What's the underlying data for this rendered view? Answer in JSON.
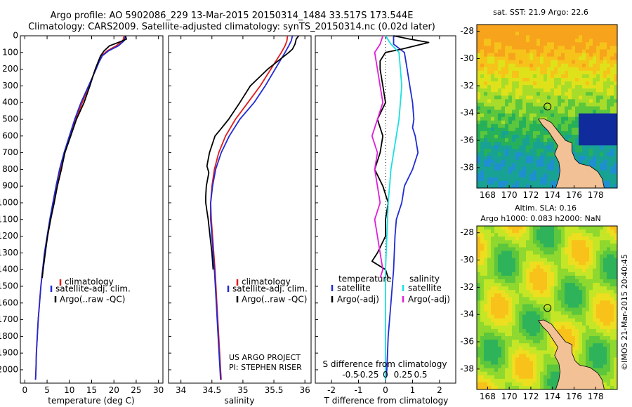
{
  "header": {
    "line1": "Argo profile: AO 5902086_229 13-Mar-2015 20150314_1484 33.517S 173.544E",
    "line2": "Climatology: CARS2009. Satellite-adjusted climatology: synTS_20150314.nc (0.02d later)"
  },
  "credit": {
    "project": "US ARGO PROJECT",
    "pi": "PI: STEPHEN RISER",
    "imos": "©IMOS 21-Mar-2015 20:40:45"
  },
  "colors": {
    "climatology": "#e21b1b",
    "satellite": "#1f2bd6",
    "argo": "#000000",
    "sal_satellite": "#18e0e0",
    "sal_argo": "#e020d8",
    "land": "#f2c195"
  },
  "chart_data": [
    {
      "id": "temperature",
      "type": "line",
      "xlabel": "temperature (deg C)",
      "ylabel": "",
      "xlim": [
        -1,
        31
      ],
      "ylim": [
        2080,
        0
      ],
      "xticks": [
        0,
        5,
        10,
        15,
        20,
        25,
        30
      ],
      "yticks": [
        0,
        100,
        200,
        300,
        400,
        500,
        600,
        700,
        800,
        900,
        1000,
        1100,
        1200,
        1300,
        1400,
        1500,
        1600,
        1700,
        1800,
        1900,
        2000
      ],
      "legend": [
        "climatology",
        "satellite-adj. clim.",
        "Argo(..raw -QC)"
      ],
      "series": [
        {
          "name": "climatology",
          "color_key": "climatology",
          "y": [
            0,
            30,
            60,
            90,
            120,
            160,
            200,
            300,
            400,
            500,
            600,
            700,
            800,
            900,
            1000,
            1100,
            1200,
            1300,
            1400,
            1500,
            1600,
            1700,
            1800,
            1900,
            2000,
            2060
          ],
          "x": [
            22.3,
            22.0,
            20.5,
            18.5,
            17.2,
            16.5,
            15.9,
            14.4,
            12.9,
            11.4,
            10.2,
            9.0,
            8.0,
            7.2,
            6.5,
            5.8,
            5.1,
            4.5,
            4.0,
            3.6,
            3.3,
            3.0,
            2.8,
            2.6,
            2.5,
            2.4
          ]
        },
        {
          "name": "satellite-adj. clim.",
          "color_key": "satellite",
          "y": [
            0,
            30,
            60,
            90,
            120,
            160,
            200,
            300,
            400,
            500,
            600,
            700,
            800,
            900,
            1000,
            1100,
            1200,
            1300,
            1400,
            1500,
            1600,
            1700,
            1800,
            1900,
            2000,
            2060
          ],
          "x": [
            22.6,
            22.3,
            21.0,
            18.8,
            17.4,
            16.6,
            16.0,
            14.3,
            12.6,
            11.2,
            10.0,
            8.8,
            7.8,
            7.0,
            6.3,
            5.6,
            5.0,
            4.4,
            4.0,
            3.6,
            3.3,
            3.0,
            2.8,
            2.6,
            2.5,
            2.4
          ]
        },
        {
          "name": "Argo(..raw -QC)",
          "color_key": "argo",
          "y": [
            0,
            20,
            40,
            60,
            90,
            120,
            160,
            200,
            300,
            400,
            500,
            600,
            700,
            800,
            900,
            1000,
            1100,
            1200,
            1300,
            1400,
            1450
          ],
          "x": [
            22.6,
            22.8,
            21.0,
            19.0,
            17.8,
            17.0,
            16.4,
            15.8,
            14.6,
            13.3,
            11.6,
            10.3,
            9.0,
            8.2,
            7.3,
            6.6,
            5.8,
            5.1,
            4.6,
            4.1,
            3.9
          ]
        }
      ]
    },
    {
      "id": "salinity",
      "type": "line",
      "xlabel": "salinity",
      "ylabel": "",
      "xlim": [
        33.8,
        36.1
      ],
      "ylim": [
        2080,
        0
      ],
      "xticks": [
        34,
        34.5,
        35,
        35.5,
        36
      ],
      "legend": [
        "climatology",
        "satellite-adj. clim.",
        "Argo(..raw -QC)"
      ],
      "series": [
        {
          "name": "climatology",
          "color_key": "climatology",
          "y": [
            0,
            30,
            60,
            100,
            200,
            300,
            400,
            500,
            600,
            700,
            800,
            900,
            1000,
            1100,
            1200,
            1300,
            1400,
            1600,
            1800,
            2000,
            2060
          ],
          "x": [
            35.72,
            35.71,
            35.68,
            35.62,
            35.45,
            35.28,
            35.08,
            34.88,
            34.72,
            34.61,
            34.54,
            34.5,
            34.48,
            34.49,
            34.51,
            34.53,
            34.55,
            34.58,
            34.61,
            34.64,
            34.65
          ]
        },
        {
          "name": "satellite-adj. clim.",
          "color_key": "satellite",
          "y": [
            0,
            30,
            60,
            100,
            200,
            300,
            400,
            500,
            600,
            700,
            800,
            900,
            1000,
            1100,
            1200,
            1300,
            1400,
            1600,
            1800,
            2000,
            2060
          ],
          "x": [
            35.8,
            35.78,
            35.74,
            35.68,
            35.52,
            35.36,
            35.18,
            34.95,
            34.78,
            34.65,
            34.56,
            34.51,
            34.48,
            34.48,
            34.5,
            34.52,
            34.54,
            34.57,
            34.6,
            34.63,
            34.64
          ]
        },
        {
          "name": "Argo(..raw -QC)",
          "color_key": "argo",
          "y": [
            0,
            20,
            50,
            80,
            100,
            150,
            200,
            300,
            400,
            500,
            560,
            600,
            700,
            780,
            820,
            900,
            960,
            1000,
            1050,
            1100,
            1200,
            1300,
            1400
          ],
          "x": [
            35.9,
            35.86,
            35.84,
            35.8,
            35.74,
            35.57,
            35.4,
            35.12,
            34.95,
            34.77,
            34.64,
            34.55,
            34.46,
            34.42,
            34.45,
            34.41,
            34.4,
            34.4,
            34.42,
            34.44,
            34.47,
            34.5,
            34.52
          ]
        }
      ]
    },
    {
      "id": "difference",
      "type": "line",
      "xlabel": "T difference from climatology",
      "xlabel_top": "S difference from climatology",
      "xlim": [
        -2.6,
        2.6
      ],
      "ylim": [
        2080,
        0
      ],
      "xticks": [
        -2,
        -1,
        0,
        1,
        2
      ],
      "xticks_top": [
        "-0.5",
        "-0.25",
        "0",
        "0.25",
        "0.5"
      ],
      "legend_headers": [
        "temperature",
        "salinity"
      ],
      "legend": [
        "satellite",
        "Argo(-adj)",
        "satellite",
        "Argo(-adj)"
      ],
      "series": [
        {
          "name": "satellite",
          "color_key": "satellite",
          "y": [
            0,
            50,
            100,
            200,
            300,
            400,
            500,
            550,
            600,
            700,
            800,
            900,
            1000,
            1100,
            1200,
            1400,
            1600,
            1800,
            2000,
            2060
          ],
          "x": [
            0.3,
            0.3,
            0.7,
            0.8,
            0.9,
            1.0,
            1.05,
            1.0,
            1.1,
            1.2,
            1.0,
            0.7,
            0.6,
            0.4,
            0.35,
            0.3,
            0.2,
            0.1,
            0.05,
            0.0
          ]
        },
        {
          "name": "Argo(-adj)",
          "color_key": "argo",
          "y": [
            0,
            20,
            40,
            60,
            80,
            100,
            150,
            200,
            300,
            400,
            500,
            600,
            700,
            800,
            900,
            1000,
            1100,
            1200,
            1300,
            1350,
            1400,
            1450
          ],
          "x": [
            0.3,
            0.9,
            1.6,
            1.1,
            0.6,
            0.0,
            -0.2,
            -0.2,
            -0.1,
            0.0,
            -0.3,
            -0.1,
            -0.2,
            -0.4,
            -0.1,
            0.1,
            0.0,
            0.0,
            -0.3,
            -0.5,
            0.0,
            0.1
          ]
        },
        {
          "name": "satellite",
          "color_key": "sal_satellite",
          "y": [
            0,
            50,
            100,
            200,
            300,
            400,
            500,
            600,
            700,
            800,
            900,
            1000,
            1200,
            1400,
            1600,
            1800,
            2000,
            2060
          ],
          "x": [
            0.0,
            0.2,
            0.5,
            0.55,
            0.6,
            0.55,
            0.5,
            0.4,
            0.3,
            0.2,
            0.15,
            0.1,
            0.05,
            0.0,
            0.0,
            0.0,
            0.0,
            0.0
          ]
        },
        {
          "name": "Argo(-adj)",
          "color_key": "sal_argo",
          "y": [
            0,
            50,
            100,
            200,
            300,
            400,
            500,
            600,
            700,
            800,
            900,
            1000,
            1100,
            1200,
            1300,
            1400,
            1450
          ],
          "x": [
            -0.1,
            -0.2,
            -0.4,
            -0.3,
            -0.2,
            -0.1,
            -0.3,
            -0.5,
            -0.3,
            -0.4,
            -0.3,
            -0.2,
            -0.4,
            -0.3,
            -0.2,
            -0.1,
            -0.2
          ]
        }
      ]
    },
    {
      "id": "map-sst",
      "type": "heatmap",
      "title": "sat. SST: 21.9 Argo: 22.6",
      "xticks": [
        168,
        170,
        172,
        174,
        176,
        178
      ],
      "yticks": [
        -28,
        -30,
        -32,
        -34,
        -36,
        -38
      ],
      "xlim": [
        167,
        180
      ],
      "ylim": [
        -39.5,
        -27.5
      ],
      "marker": {
        "lon": 173.544,
        "lat": -33.517
      }
    },
    {
      "id": "map-sla",
      "type": "heatmap",
      "title": "Altim. SLA: 0.16",
      "subtitle": "Argo h1000: 0.083 h2000: NaN",
      "xticks": [
        168,
        170,
        172,
        174,
        176,
        178
      ],
      "yticks": [
        -28,
        -30,
        -32,
        -34,
        -36,
        -38
      ],
      "xlim": [
        167,
        180
      ],
      "ylim": [
        -39.5,
        -27.5
      ],
      "marker": {
        "lon": 173.544,
        "lat": -33.517
      }
    }
  ]
}
